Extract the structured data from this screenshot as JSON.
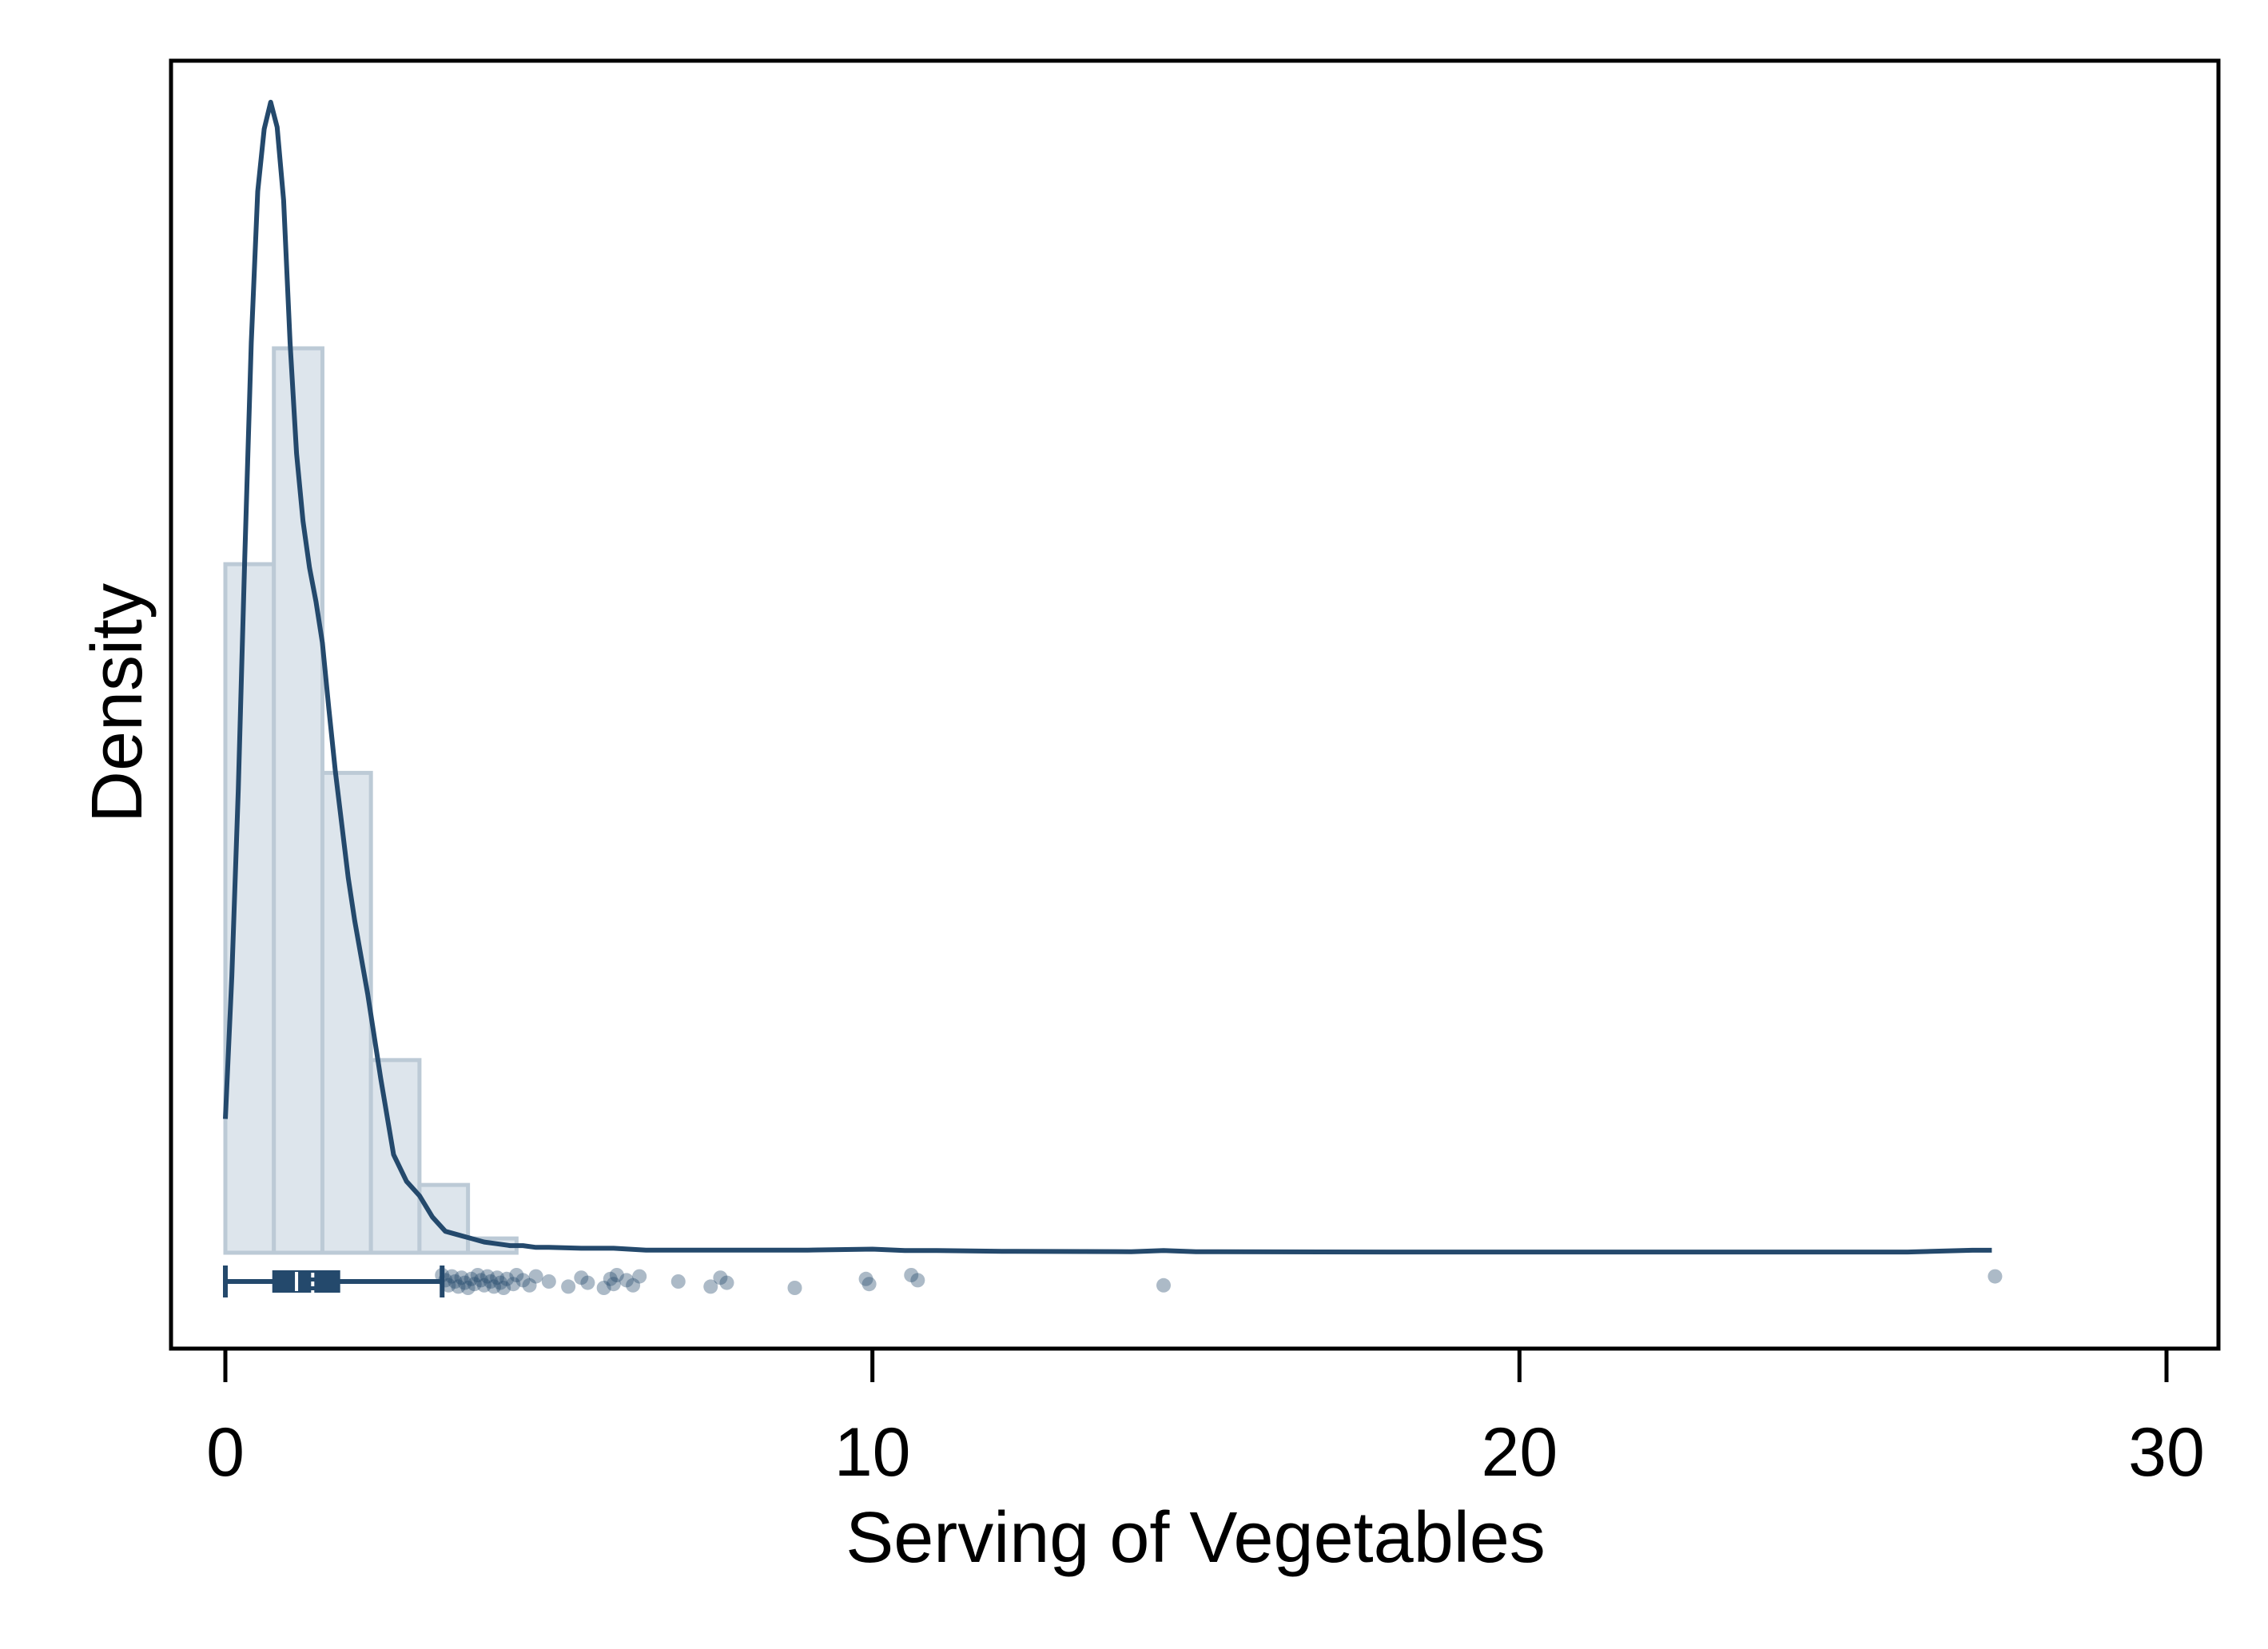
{
  "chart_data": {
    "type": "histogram",
    "title": "",
    "xlabel": "Serving of Vegetables",
    "ylabel": "Density",
    "xlim": [
      0,
      30
    ],
    "xticks": [
      0,
      10,
      20,
      30
    ],
    "ylim": [
      0,
      0.62
    ],
    "y_ticks_shown": false,
    "grid": false,
    "legend": "none",
    "colors": {
      "bar_fill": "#dde5ec",
      "bar_edge": "#bccad6",
      "line": "#24496c",
      "point": "#24496c",
      "frame": "#000000"
    },
    "histogram": {
      "bin_width": 0.75,
      "bins": [
        {
          "x0": 0.0,
          "x1": 0.75,
          "density": 0.386
        },
        {
          "x0": 0.75,
          "x1": 1.5,
          "density": 0.507
        },
        {
          "x0": 1.5,
          "x1": 2.25,
          "density": 0.269
        },
        {
          "x0": 2.25,
          "x1": 3.0,
          "density": 0.108
        },
        {
          "x0": 3.0,
          "x1": 3.75,
          "density": 0.038
        },
        {
          "x0": 3.75,
          "x1": 4.5,
          "density": 0.008
        }
      ]
    },
    "kde": {
      "name": "",
      "x": [
        0.0,
        0.1,
        0.2,
        0.3,
        0.4,
        0.5,
        0.6,
        0.7,
        0.8,
        0.9,
        1.0,
        1.1,
        1.2,
        1.3,
        1.4,
        1.5,
        1.6,
        1.7,
        1.8,
        1.9,
        2.0,
        2.2,
        2.4,
        2.6,
        2.8,
        3.0,
        3.2,
        3.4,
        3.6,
        3.8,
        4.0,
        4.2,
        4.4,
        4.6,
        4.8,
        5.0,
        5.5,
        6.0,
        6.5,
        7.0,
        7.5,
        8.0,
        9.0,
        10.0,
        10.5,
        11.0,
        12.0,
        14.0,
        14.5,
        15.0,
        18.0,
        22.0,
        26.0,
        27.0,
        27.3
      ],
      "y": [
        0.075,
        0.155,
        0.26,
        0.39,
        0.51,
        0.595,
        0.63,
        0.645,
        0.631,
        0.59,
        0.51,
        0.448,
        0.41,
        0.384,
        0.365,
        0.342,
        0.305,
        0.27,
        0.24,
        0.21,
        0.186,
        0.145,
        0.098,
        0.055,
        0.04,
        0.032,
        0.02,
        0.012,
        0.01,
        0.008,
        0.006,
        0.005,
        0.004,
        0.004,
        0.003,
        0.003,
        0.0025,
        0.0025,
        0.0015,
        0.0015,
        0.0015,
        0.0015,
        0.0015,
        0.002,
        0.0012,
        0.0012,
        0.0008,
        0.0006,
        0.0012,
        0.0006,
        0.0004,
        0.0004,
        0.0004,
        0.0014,
        0.0014
      ]
    },
    "boxplot": {
      "min": 0.0,
      "q1": 0.75,
      "median": 1.1,
      "mean": 1.35,
      "q3": 1.75,
      "whisker_high": 3.35,
      "outliers": [
        3.35,
        3.4,
        3.45,
        3.5,
        3.55,
        3.6,
        3.65,
        3.7,
        3.75,
        3.8,
        3.85,
        3.9,
        3.95,
        4.0,
        4.05,
        4.1,
        4.15,
        4.2,
        4.25,
        4.3,
        4.35,
        4.45,
        4.5,
        4.6,
        4.7,
        4.8,
        5.0,
        5.3,
        5.5,
        5.6,
        5.85,
        5.95,
        6.0,
        6.05,
        6.2,
        6.3,
        6.4,
        7.0,
        7.5,
        7.65,
        7.75,
        8.8,
        9.9,
        9.95,
        10.6,
        10.7,
        14.5,
        27.35
      ]
    }
  }
}
